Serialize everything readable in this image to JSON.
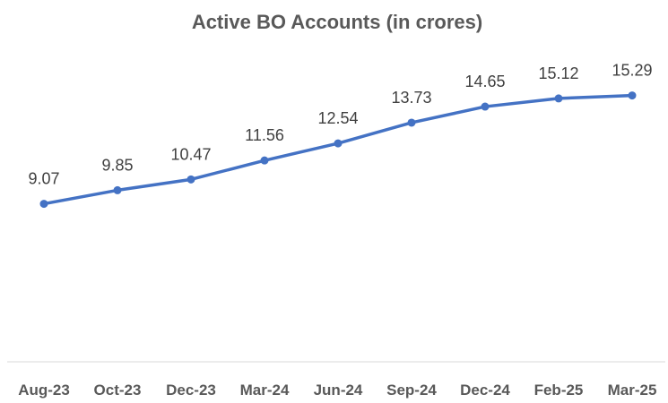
{
  "chart_data": {
    "type": "line",
    "title": "Active BO Accounts (in crores)",
    "xlabel": "",
    "ylabel": "",
    "categories": [
      "Aug-23",
      "Oct-23",
      "Dec-23",
      "Mar-24",
      "Jun-24",
      "Sep-24",
      "Dec-24",
      "Feb-25",
      "Mar-25"
    ],
    "series": [
      {
        "values": [
          9.07,
          9.85,
          10.47,
          11.56,
          12.54,
          13.73,
          14.65,
          15.12,
          15.29
        ],
        "color": "#4472C4"
      }
    ],
    "ylim": [
      0,
      18
    ],
    "data_labels": true,
    "grid": false,
    "legend": "none"
  }
}
